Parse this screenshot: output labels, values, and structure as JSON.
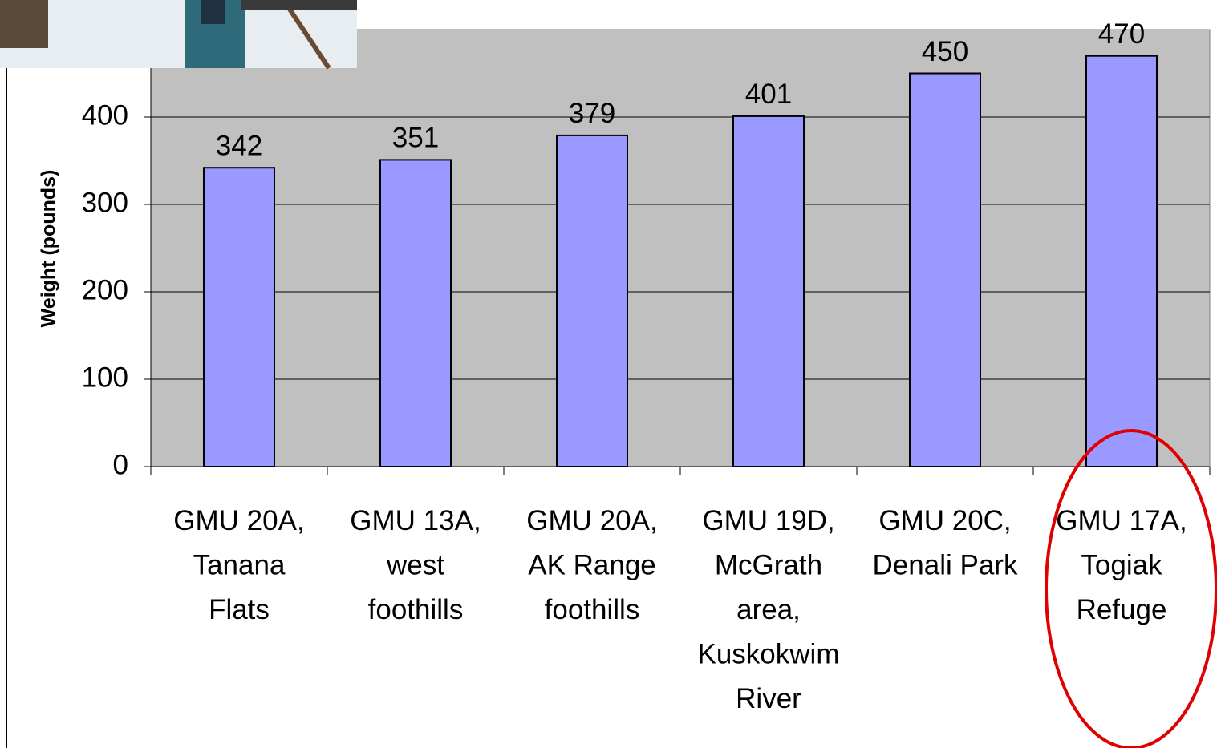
{
  "chart_data": {
    "type": "bar",
    "y_label": "Weight (pounds)",
    "categories": [
      "GMU 20A,\nTanana\nFlats",
      "GMU 13A,\nwest\nfoothills",
      "GMU 20A,\nAK Range\nfoothills",
      "GMU 19D,\nMcGrath\narea,\nKuskokwim\nRiver",
      "GMU 20C,\nDenali Park",
      "GMU 17A,\nTogiak\nRefuge"
    ],
    "values": [
      342,
      351,
      379,
      401,
      450,
      470
    ],
    "color": "#9999ff",
    "ylim": [
      0,
      500
    ],
    "yticks": [
      0,
      100,
      200,
      300,
      400
    ],
    "grid": true
  }
}
